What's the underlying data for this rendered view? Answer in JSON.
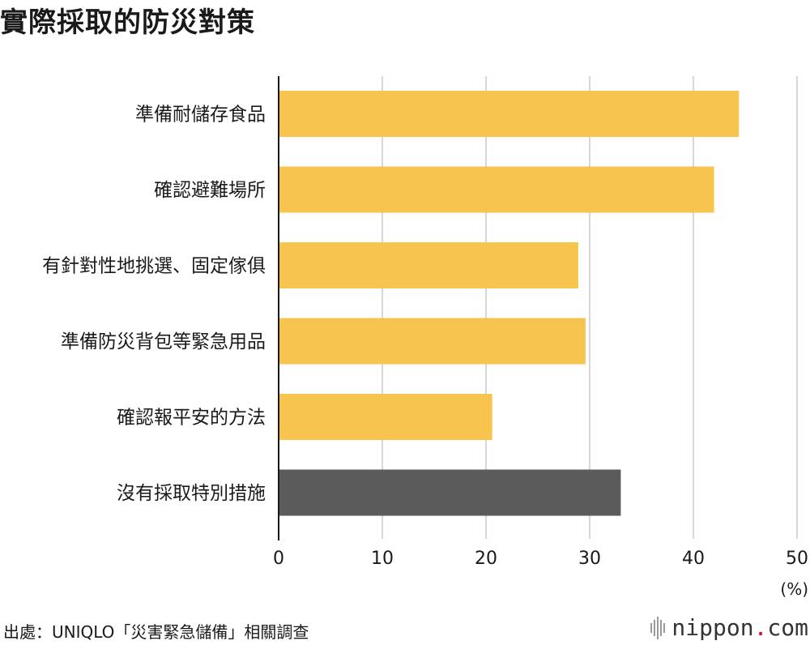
{
  "title": "實際採取的防災對策",
  "source": "出處：UNIQLO「災害緊急儲備」相關調查",
  "logo": {
    "name": "nippon",
    "dot": ".",
    "tld": "com"
  },
  "colors": {
    "highlight": "#F7C54D",
    "other": "#5B5B5B",
    "grid": "#D6D6D6",
    "axis": "#1a1a1a"
  },
  "chart_data": {
    "type": "bar",
    "orientation": "horizontal",
    "categories": [
      "準備耐儲存食品",
      "確認避難場所",
      "有針對性地挑選、固定傢俱",
      "準備防災背包等緊急用品",
      "確認報平安的方法",
      "沒有採取特別措施"
    ],
    "values": [
      44.4,
      42.0,
      28.9,
      29.6,
      20.6,
      33.0
    ],
    "bar_colors": [
      "#F7C54D",
      "#F7C54D",
      "#F7C54D",
      "#F7C54D",
      "#F7C54D",
      "#5B5B5B"
    ],
    "xlim": [
      0,
      50
    ],
    "xticks": [
      0,
      10,
      20,
      30,
      40,
      50
    ],
    "xunit": "(%)",
    "grid": true
  }
}
